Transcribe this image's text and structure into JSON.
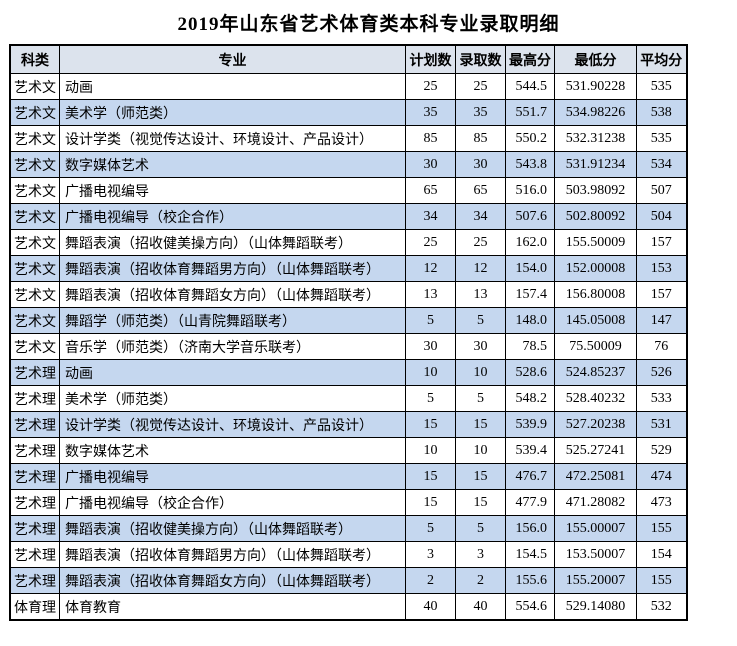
{
  "title": "2019年山东省艺术体育类本科专业录取明细",
  "table": {
    "columns": [
      "科类",
      "专业",
      "计划数",
      "录取数",
      "最高分",
      "最低分",
      "平均分"
    ],
    "rows": [
      [
        "艺术文",
        "动画",
        "25",
        "25",
        "544.5",
        "531.90228",
        "535"
      ],
      [
        "艺术文",
        "美术学（师范类）",
        "35",
        "35",
        "551.7",
        "534.98226",
        "538"
      ],
      [
        "艺术文",
        "设计学类（视觉传达设计、环境设计、产品设计）",
        "85",
        "85",
        "550.2",
        "532.31238",
        "535"
      ],
      [
        "艺术文",
        "数字媒体艺术",
        "30",
        "30",
        "543.8",
        "531.91234",
        "534"
      ],
      [
        "艺术文",
        "广播电视编导",
        "65",
        "65",
        "516.0",
        "503.98092",
        "507"
      ],
      [
        "艺术文",
        "广播电视编导（校企合作）",
        "34",
        "34",
        "507.6",
        "502.80092",
        "504"
      ],
      [
        "艺术文",
        "舞蹈表演（招收健美操方向）（山体舞蹈联考）",
        "25",
        "25",
        "162.0",
        "155.50009",
        "157"
      ],
      [
        "艺术文",
        "舞蹈表演（招收体育舞蹈男方向）（山体舞蹈联考）",
        "12",
        "12",
        "154.0",
        "152.00008",
        "153"
      ],
      [
        "艺术文",
        "舞蹈表演（招收体育舞蹈女方向）（山体舞蹈联考）",
        "13",
        "13",
        "157.4",
        "156.80008",
        "157"
      ],
      [
        "艺术文",
        "舞蹈学（师范类）（山青院舞蹈联考）",
        "5",
        "5",
        "148.0",
        "145.05008",
        "147"
      ],
      [
        "艺术文",
        "音乐学（师范类）（济南大学音乐联考）",
        "30",
        "30",
        "78.5",
        "75.50009",
        "76"
      ],
      [
        "艺术理",
        "动画",
        "10",
        "10",
        "528.6",
        "524.85237",
        "526"
      ],
      [
        "艺术理",
        "美术学（师范类）",
        "5",
        "5",
        "548.2",
        "528.40232",
        "533"
      ],
      [
        "艺术理",
        "设计学类（视觉传达设计、环境设计、产品设计）",
        "15",
        "15",
        "539.9",
        "527.20238",
        "531"
      ],
      [
        "艺术理",
        "数字媒体艺术",
        "10",
        "10",
        "539.4",
        "525.27241",
        "529"
      ],
      [
        "艺术理",
        "广播电视编导",
        "15",
        "15",
        "476.7",
        "472.25081",
        "474"
      ],
      [
        "艺术理",
        "广播电视编导（校企合作）",
        "15",
        "15",
        "477.9",
        "471.28082",
        "473"
      ],
      [
        "艺术理",
        "舞蹈表演（招收健美操方向）（山体舞蹈联考）",
        "5",
        "5",
        "156.0",
        "155.00007",
        "155"
      ],
      [
        "艺术理",
        "舞蹈表演（招收体育舞蹈男方向）（山体舞蹈联考）",
        "3",
        "3",
        "154.5",
        "153.50007",
        "154"
      ],
      [
        "艺术理",
        "舞蹈表演（招收体育舞蹈女方向）（山体舞蹈联考）",
        "2",
        "2",
        "155.6",
        "155.20007",
        "155"
      ],
      [
        "体育理",
        "体育教育",
        "40",
        "40",
        "554.6",
        "529.14080",
        "532"
      ]
    ],
    "colors": {
      "header_bg": "#dce3ed",
      "stripe_bg": "#c5d7ef",
      "border": "#000000",
      "text": "#000000"
    }
  }
}
